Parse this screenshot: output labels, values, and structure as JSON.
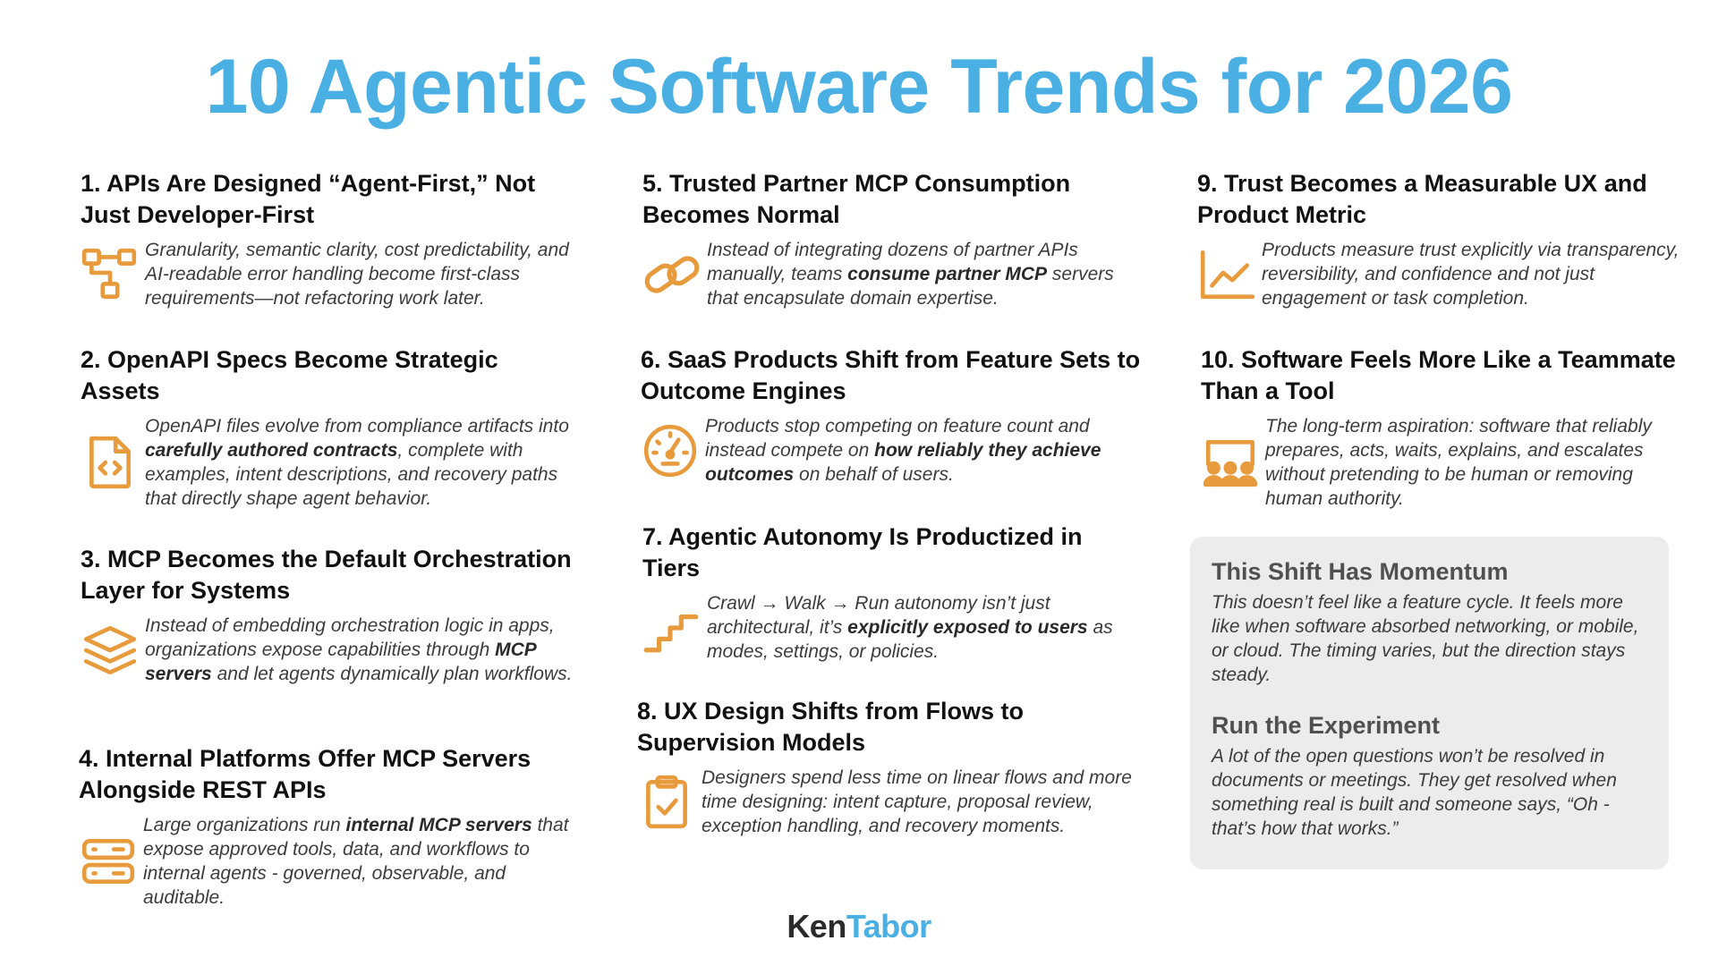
{
  "title": "10 Agentic Software Trends for 2026",
  "colors": {
    "title": "#4aafe3",
    "icon": "#e89b3c",
    "panel": "#ececec",
    "brand_dark": "#2b2b2b",
    "brand_accent": "#4aafe3"
  },
  "trends": [
    {
      "title": "1. APIs Are Designed “Agent-First,” Not Just Developer-First",
      "icon": "flow-chart-icon",
      "desc": [
        {
          "t": "Granularity, semantic clarity, cost predictability, and AI-readable error handling become first-class requirements—not refactoring work later."
        }
      ]
    },
    {
      "title": "2. OpenAPI Specs Become Strategic Assets",
      "icon": "code-file-icon",
      "desc": [
        {
          "t": "OpenAPI files evolve from compliance artifacts into "
        },
        {
          "t": "carefully authored contracts",
          "b": true
        },
        {
          "t": ", complete with examples, intent descriptions, and recovery paths that directly shape agent behavior."
        }
      ]
    },
    {
      "title": "3. MCP Becomes the Default Orchestration Layer for Systems",
      "icon": "layers-icon",
      "desc": [
        {
          "t": "Instead of embedding orchestration logic in apps, organizations expose capabilities through "
        },
        {
          "t": "MCP servers",
          "b": true
        },
        {
          "t": " and let agents dynamically plan workflows."
        }
      ]
    },
    {
      "title": "4. Internal Platforms Offer MCP Servers Alongside REST APIs",
      "icon": "server-icon",
      "desc": [
        {
          "t": "Large organizations run "
        },
        {
          "t": "internal MCP servers",
          "b": true
        },
        {
          "t": " that expose approved tools, data, and workflows to internal agents - governed, observable, and auditable."
        }
      ]
    },
    {
      "title": "5. Trusted Partner MCP Consumption Becomes Normal",
      "icon": "link-icon",
      "desc": [
        {
          "t": "Instead of integrating dozens of partner APIs manually, teams "
        },
        {
          "t": "consume partner MCP",
          "b": true
        },
        {
          "t": " servers that encapsulate domain expertise."
        }
      ]
    },
    {
      "title": "6. SaaS Products Shift from Feature Sets to Outcome Engines",
      "icon": "gauge-icon",
      "desc": [
        {
          "t": "Products stop competing on feature count and instead compete on "
        },
        {
          "t": "how reliably they achieve outcomes",
          "b": true
        },
        {
          "t": " on behalf of users."
        }
      ]
    },
    {
      "title": "7. Agentic Autonomy Is Productized in Tiers",
      "icon": "stairs-icon",
      "desc": [
        {
          "t": "Crawl → Walk → Run autonomy isn’t just architectural, it’s "
        },
        {
          "t": "explicitly exposed to users",
          "b": true
        },
        {
          "t": " as modes, settings, or policies."
        }
      ]
    },
    {
      "title": "8. UX Design Shifts from Flows to Supervision Models",
      "icon": "clipboard-check-icon",
      "desc": [
        {
          "t": "Designers spend less time on linear flows and more time designing: intent capture, proposal review, exception handling, and recovery moments."
        }
      ]
    },
    {
      "title": "9. Trust Becomes a Measurable UX and Product Metric",
      "icon": "line-chart-icon",
      "desc": [
        {
          "t": "Products measure trust explicitly via transparency, reversibility, and confidence and not just engagement or task completion."
        }
      ]
    },
    {
      "title": "10. Software Feels More Like a Teammate Than a Tool",
      "icon": "team-presentation-icon",
      "desc": [
        {
          "t": "The long-term aspiration: software that reliably prepares, acts, waits, explains, and escalates without pretending to be human or removing human authority."
        }
      ]
    }
  ],
  "momentum": {
    "heading1": "This Shift Has Momentum",
    "text1": "This doesn’t feel like a feature cycle. It feels more like when software absorbed networking, or mobile, or cloud. The timing varies, but the direction stays steady.",
    "heading2": "Run the Experiment",
    "text2": "A lot of the open questions won’t be resolved in documents or meetings. They get resolved when something real is built and someone says, “Oh - that’s how that works.”"
  },
  "brand": {
    "first": "Ken",
    "second": "Tabor"
  }
}
